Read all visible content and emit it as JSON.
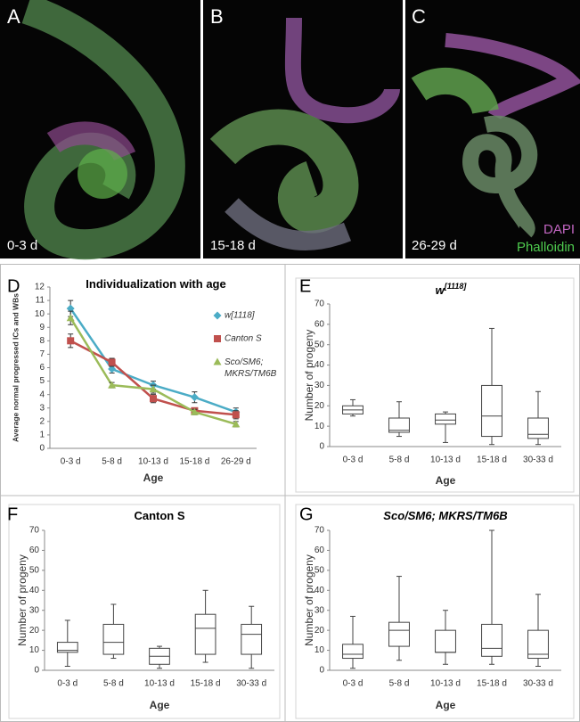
{
  "images": [
    {
      "letter": "A",
      "label": "0-3 d"
    },
    {
      "letter": "B",
      "label": "15-18 d"
    },
    {
      "letter": "C",
      "label": "26-29 d",
      "legend": [
        "DAPI",
        "Phalloidin"
      ]
    }
  ],
  "chart_data": [
    {
      "type": "line",
      "letter": "D",
      "title": "Individualization with age",
      "y_label": "Average normal progressed ICs and WBs",
      "x_label": "Age",
      "categories": [
        "0-3 d",
        "5-8 d",
        "10-13 d",
        "15-18 d",
        "26-29 d"
      ],
      "ylim": [
        0,
        12
      ],
      "yticks": [
        0,
        1,
        2,
        3,
        4,
        5,
        6,
        7,
        8,
        9,
        10,
        11,
        12
      ],
      "series": [
        {
          "name": "w[1118]",
          "color": "#4bacc6",
          "marker": "diamond",
          "values": [
            10.4,
            5.9,
            4.7,
            3.8,
            2.7
          ],
          "errors": [
            0.6,
            0.3,
            0.3,
            0.4,
            0.3
          ]
        },
        {
          "name": "Canton S",
          "color": "#c0504d",
          "marker": "square",
          "values": [
            8.0,
            6.4,
            3.7,
            2.8,
            2.5
          ],
          "errors": [
            0.5,
            0.3,
            0.3,
            0.2,
            0.3
          ]
        },
        {
          "name": "Sco/SM6; MKRS/TM6B",
          "color": "#9bbb59",
          "marker": "triangle",
          "values": [
            9.7,
            4.7,
            4.4,
            2.7,
            1.8
          ],
          "errors": [
            0.5,
            0.2,
            0.3,
            0.2,
            0.2
          ]
        }
      ]
    },
    {
      "type": "box",
      "letter": "E",
      "title": "w",
      "title_superscript": "[1118]",
      "y_label": "Number of progeny",
      "x_label": "Age",
      "categories": [
        "0-3 d",
        "5-8 d",
        "10-13 d",
        "15-18 d",
        "30-33 d"
      ],
      "ylim": [
        0,
        70
      ],
      "yticks": [
        0,
        10,
        20,
        30,
        40,
        50,
        60,
        70
      ],
      "boxes": [
        {
          "min": 15,
          "q1": 16,
          "median": 18,
          "q3": 20,
          "max": 23
        },
        {
          "min": 5,
          "q1": 7,
          "median": 8,
          "q3": 14,
          "max": 22
        },
        {
          "min": 2,
          "q1": 11,
          "median": 13,
          "q3": 16,
          "max": 17
        },
        {
          "min": 1,
          "q1": 5,
          "median": 15,
          "q3": 30,
          "max": 58
        },
        {
          "min": 1,
          "q1": 4,
          "median": 6,
          "q3": 14,
          "max": 27
        }
      ]
    },
    {
      "type": "box",
      "letter": "F",
      "title": "Canton S",
      "y_label": "Number of progeny",
      "x_label": "Age",
      "categories": [
        "0-3 d",
        "5-8 d",
        "10-13 d",
        "15-18 d",
        "30-33 d"
      ],
      "ylim": [
        0,
        70
      ],
      "yticks": [
        0,
        10,
        20,
        30,
        40,
        50,
        60,
        70
      ],
      "boxes": [
        {
          "min": 2,
          "q1": 9,
          "median": 10,
          "q3": 14,
          "max": 25
        },
        {
          "min": 6,
          "q1": 8,
          "median": 14,
          "q3": 23,
          "max": 33
        },
        {
          "min": 1,
          "q1": 3,
          "median": 7,
          "q3": 11,
          "max": 12
        },
        {
          "min": 4,
          "q1": 8,
          "median": 21,
          "q3": 28,
          "max": 40
        },
        {
          "min": 1,
          "q1": 8,
          "median": 18,
          "q3": 23,
          "max": 32
        }
      ]
    },
    {
      "type": "box",
      "letter": "G",
      "title": "Sco/SM6; MKRS/TM6B",
      "y_label": "Number of progeny",
      "x_label": "Age",
      "categories": [
        "0-3 d",
        "5-8 d",
        "10-13 d",
        "15-18 d",
        "30-33 d"
      ],
      "ylim": [
        0,
        70
      ],
      "yticks": [
        0,
        10,
        20,
        30,
        40,
        50,
        60,
        70
      ],
      "boxes": [
        {
          "min": 1,
          "q1": 6,
          "median": 8,
          "q3": 13,
          "max": 27
        },
        {
          "min": 5,
          "q1": 12,
          "median": 20,
          "q3": 24,
          "max": 47
        },
        {
          "min": 3,
          "q1": 9,
          "median": 9,
          "q3": 20,
          "max": 30
        },
        {
          "min": 3,
          "q1": 7,
          "median": 11,
          "q3": 23,
          "max": 70
        },
        {
          "min": 2,
          "q1": 6,
          "median": 8,
          "q3": 20,
          "max": 38
        }
      ]
    }
  ]
}
